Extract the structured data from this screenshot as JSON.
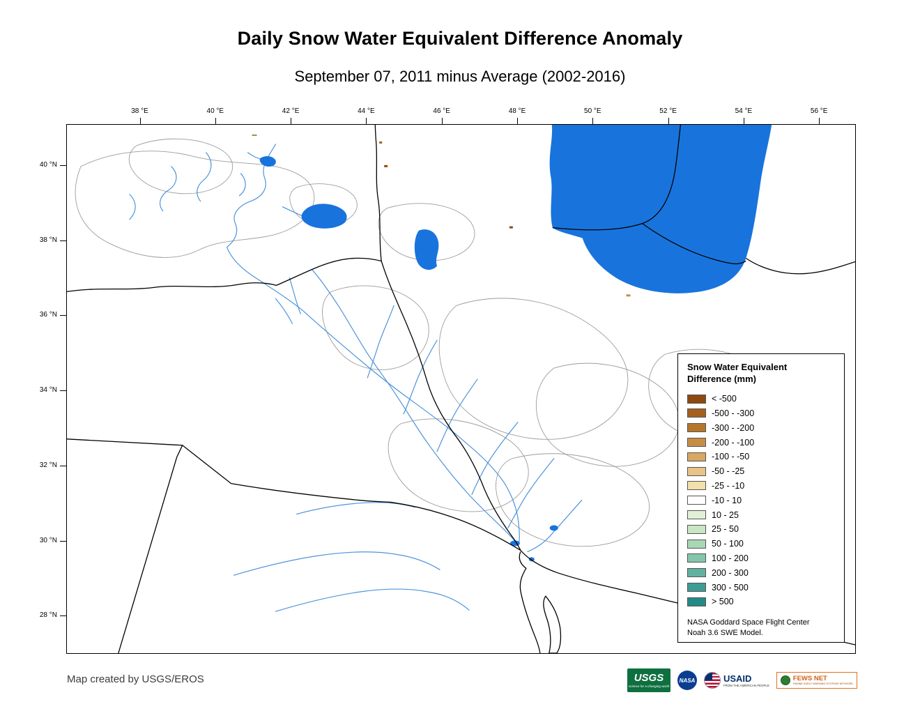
{
  "title": "Daily Snow Water Equivalent Difference Anomaly",
  "subtitle": "September 07, 2011 minus Average (2002-2016)",
  "map": {
    "lon_labels": [
      "38 °E",
      "40 °E",
      "42 °E",
      "44 °E",
      "46 °E",
      "48 °E",
      "50 °E",
      "52 °E",
      "54 °E",
      "56 °E"
    ],
    "lat_labels": [
      "40 °N",
      "38 °N",
      "36 °N",
      "34 °N",
      "32 °N",
      "30 °N",
      "28 °N"
    ]
  },
  "legend": {
    "title_line1": "Snow Water Equivalent",
    "title_line2": "Difference (mm)",
    "entries": [
      {
        "label": "< -500",
        "color": "#8F480E"
      },
      {
        "label": "-500 - -300",
        "color": "#A4601C"
      },
      {
        "label": "-300 - -200",
        "color": "#B5762B"
      },
      {
        "label": "-200 - -100",
        "color": "#C78D45"
      },
      {
        "label": "-100 - -50",
        "color": "#D8A763"
      },
      {
        "label": "-50 - -25",
        "color": "#E8C488"
      },
      {
        "label": "-25 - -10",
        "color": "#F3E0AC"
      },
      {
        "label": "-10 - 10",
        "color": "#FFFFFF"
      },
      {
        "label": "10 - 25",
        "color": "#E2F0D8"
      },
      {
        "label": "25 - 50",
        "color": "#C8E6C3"
      },
      {
        "label": "50 - 100",
        "color": "#A9D7B5"
      },
      {
        "label": "100 - 200",
        "color": "#85C5AC"
      },
      {
        "label": "200 - 300",
        "color": "#60B1A1"
      },
      {
        "label": "300 - 500",
        "color": "#3F9C94"
      },
      {
        "label": "> 500",
        "color": "#238A86"
      }
    ],
    "footer_line1": "NASA Goddard Space Flight Center",
    "footer_line2": "Noah 3.6 SWE Model."
  },
  "credits": "Map created by USGS/EROS",
  "logos": {
    "usgs": {
      "name": "USGS",
      "tagline": "science for a changing world"
    },
    "nasa": {
      "name": "NASA"
    },
    "usaid": {
      "name": "USAID",
      "tagline": "FROM THE AMERICAN PEOPLE"
    },
    "fewsnet": {
      "name": "FEWS NET",
      "tagline": "FAMINE EARLY WARNING SYSTEMS NETWORK"
    }
  },
  "colors": {
    "water": "#1874DC",
    "river": "#4D94DB",
    "border": "#000000",
    "watershed": "#9C9C9C"
  }
}
